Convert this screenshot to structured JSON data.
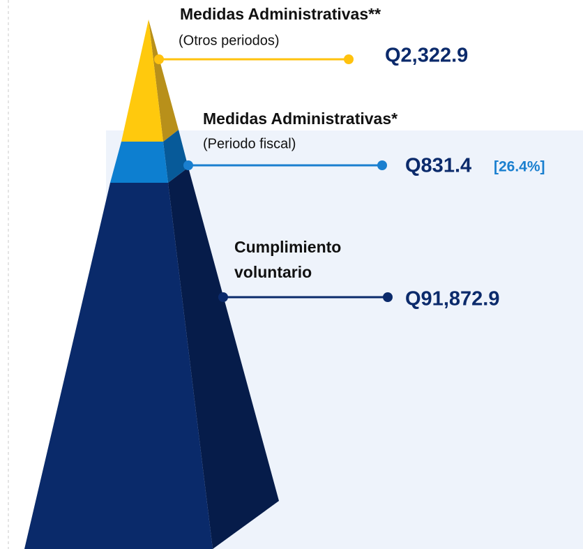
{
  "levels": [
    {
      "title": "Medidas Administrativas**",
      "subtitle": "(Otros periodos)",
      "value": "Q2,322.9"
    },
    {
      "title": "Medidas Administrativas*",
      "subtitle": "(Periodo fiscal)",
      "value": "Q831.4",
      "share": "[26.4%]"
    },
    {
      "title": "Cumplimiento",
      "subtitle": "voluntario",
      "value": "Q91,872.9"
    }
  ]
}
